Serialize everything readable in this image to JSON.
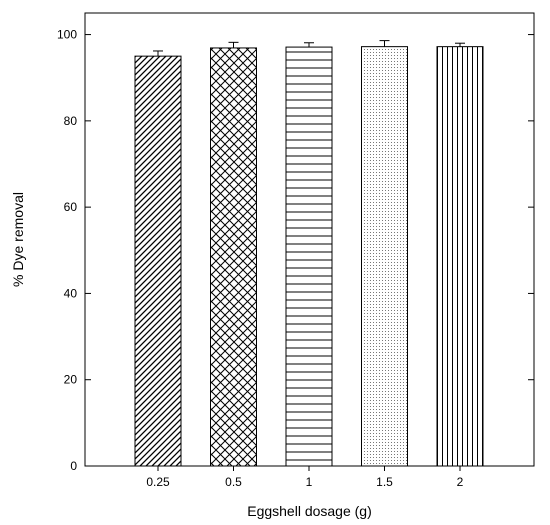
{
  "chart_data": {
    "type": "bar",
    "title": "",
    "xlabel": "Eggshell dosage (g)",
    "ylabel": "% Dye removal",
    "categories": [
      "0.25",
      "0.5",
      "1",
      "1.5",
      "2"
    ],
    "values": [
      95.0,
      96.9,
      97.1,
      97.2,
      97.2
    ],
    "errors": [
      1.2,
      1.3,
      1.0,
      1.4,
      0.8
    ],
    "ylim": [
      0,
      105
    ],
    "yticks": [
      0,
      20,
      40,
      60,
      80,
      100
    ],
    "patterns": [
      "diagonal-hatch",
      "crosshatch",
      "horizontal-lines",
      "dots",
      "vertical-lines"
    ],
    "grid": false,
    "legend": "none"
  }
}
